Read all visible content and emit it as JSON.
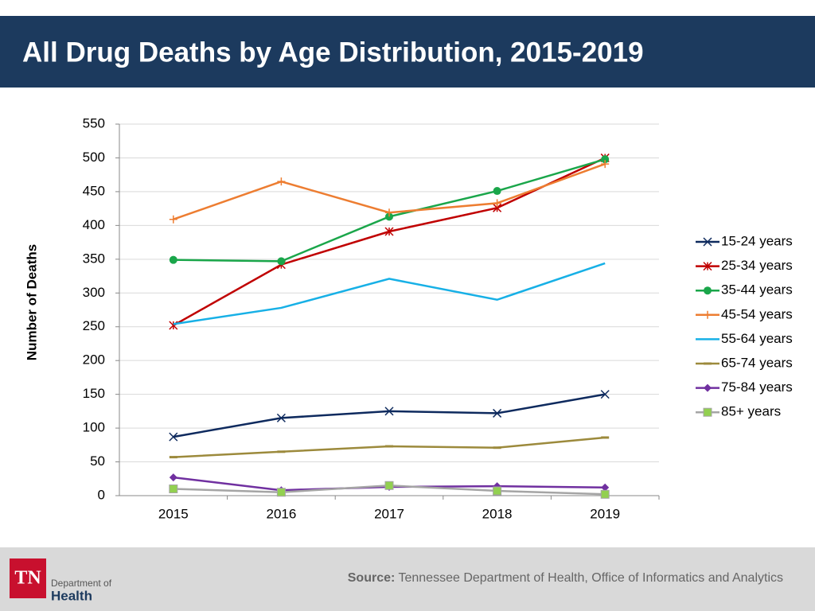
{
  "header": {
    "title": "All Drug Deaths by Age Distribution, 2015-2019"
  },
  "chart_data": {
    "type": "line",
    "y_label": "Number of Deaths",
    "categories": [
      "2015",
      "2016",
      "2017",
      "2018",
      "2019"
    ],
    "ylim": [
      0,
      550
    ],
    "yticks": [
      0,
      50,
      100,
      150,
      200,
      250,
      300,
      350,
      400,
      450,
      500,
      550
    ],
    "grid": true,
    "legend": "right",
    "series": [
      {
        "name": "15-24 years",
        "color": "#0e2a5e",
        "marker": "x",
        "values": [
          87,
          115,
          125,
          122,
          150
        ]
      },
      {
        "name": "25-34 years",
        "color": "#c00000",
        "marker": "star",
        "values": [
          252,
          342,
          391,
          426,
          500
        ]
      },
      {
        "name": "35-44 years",
        "color": "#1aa64a",
        "marker": "circle",
        "values": [
          349,
          347,
          413,
          451,
          498
        ]
      },
      {
        "name": "45-54 years",
        "color": "#ed7d31",
        "marker": "plus",
        "values": [
          409,
          465,
          419,
          433,
          491
        ]
      },
      {
        "name": "55-64 years",
        "color": "#17b0e6",
        "marker": "none",
        "values": [
          254,
          278,
          321,
          290,
          344
        ]
      },
      {
        "name": "65-74 years",
        "color": "#9c8a3c",
        "marker": "dash",
        "values": [
          57,
          65,
          73,
          71,
          86
        ]
      },
      {
        "name": "75-84 years",
        "color": "#7030a0",
        "marker": "diamond",
        "values": [
          27,
          8,
          13,
          14,
          12
        ]
      },
      {
        "name": "85+ years",
        "color": "#a5a5a5",
        "marker": "square",
        "values": [
          10,
          5,
          15,
          7,
          2
        ]
      }
    ]
  },
  "footer": {
    "source_label": "Source:",
    "source_text": "Tennessee Department of Health, Office of Informatics and Analytics",
    "logo": {
      "mark": "TN",
      "line1": "Department of",
      "line2": "Health"
    }
  }
}
